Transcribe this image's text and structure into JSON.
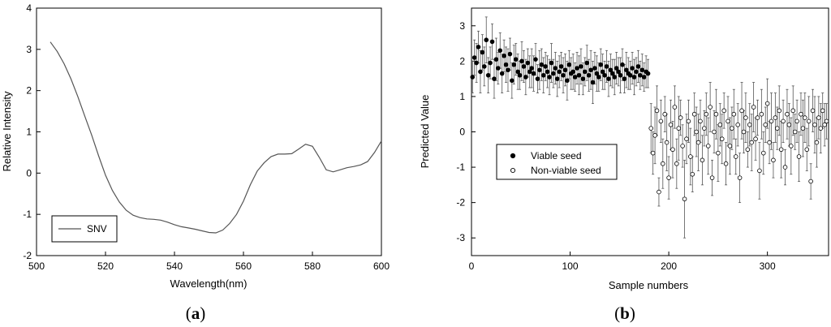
{
  "chart_data": [
    {
      "type": "line",
      "panel_label": "a",
      "xlabel": "Wavelength(nm)",
      "ylabel": "Relative Intensity",
      "xlim": [
        500,
        600
      ],
      "ylim": [
        -2,
        4
      ],
      "xticks": [
        "500",
        "520",
        "540",
        "560",
        "580",
        "600"
      ],
      "yticks": [
        "-2",
        "-1",
        "0",
        "1",
        "2",
        "3",
        "4"
      ],
      "legend": {
        "placement": "bottom-left",
        "entries": [
          "SNV"
        ]
      },
      "series": [
        {
          "name": "SNV",
          "color": "#555555",
          "x": [
            504,
            506,
            508,
            510,
            512,
            514,
            516,
            518,
            520,
            522,
            524,
            526,
            528,
            530,
            532,
            534,
            536,
            538,
            540,
            542,
            544,
            546,
            548,
            550,
            552,
            554,
            556,
            558,
            560,
            562,
            564,
            566,
            568,
            570,
            572,
            574,
            576,
            578,
            580,
            582,
            584,
            586,
            588,
            590,
            592,
            594,
            596,
            598,
            600
          ],
          "y": [
            3.18,
            2.95,
            2.65,
            2.28,
            1.85,
            1.38,
            0.92,
            0.42,
            -0.05,
            -0.42,
            -0.7,
            -0.9,
            -1.02,
            -1.08,
            -1.11,
            -1.12,
            -1.14,
            -1.19,
            -1.25,
            -1.3,
            -1.33,
            -1.36,
            -1.4,
            -1.44,
            -1.45,
            -1.38,
            -1.22,
            -1.0,
            -0.68,
            -0.28,
            0.05,
            0.25,
            0.4,
            0.46,
            0.46,
            0.47,
            0.58,
            0.7,
            0.65,
            0.38,
            0.08,
            0.03,
            0.08,
            0.13,
            0.16,
            0.2,
            0.28,
            0.5,
            0.78
          ]
        }
      ]
    },
    {
      "type": "scatter",
      "panel_label": "b",
      "xlabel": "Sample numbers",
      "ylabel": "Predicted Value",
      "xlim": [
        0,
        362
      ],
      "ylim": [
        -3.5,
        3.5
      ],
      "xticks": [
        "0",
        "100",
        "200",
        "300"
      ],
      "yticks": [
        "-3",
        "-2",
        "-1",
        "0",
        "1",
        "2",
        "3"
      ],
      "legend": {
        "placement": "middle-left",
        "entries": [
          "Viable seed",
          "Non-viable seed"
        ]
      },
      "error_bars": true,
      "series": [
        {
          "name": "Viable seed",
          "marker": "filled-circle",
          "x": [
            1,
            3,
            5,
            7,
            9,
            11,
            13,
            15,
            17,
            19,
            21,
            23,
            25,
            27,
            29,
            31,
            33,
            35,
            37,
            39,
            41,
            43,
            45,
            47,
            49,
            51,
            53,
            55,
            57,
            59,
            61,
            63,
            65,
            67,
            69,
            71,
            73,
            75,
            77,
            79,
            81,
            83,
            85,
            87,
            89,
            91,
            93,
            95,
            97,
            99,
            101,
            103,
            105,
            107,
            109,
            111,
            113,
            115,
            117,
            119,
            121,
            123,
            125,
            127,
            129,
            131,
            133,
            135,
            137,
            139,
            141,
            143,
            145,
            147,
            149,
            151,
            153,
            155,
            157,
            159,
            161,
            163,
            165,
            167,
            169,
            171,
            173,
            175,
            177,
            179
          ],
          "y": [
            1.55,
            2.1,
            1.95,
            2.4,
            1.7,
            2.25,
            1.85,
            2.6,
            1.6,
            1.95,
            2.55,
            1.5,
            2.05,
            1.8,
            2.3,
            1.65,
            2.15,
            1.9,
            1.75,
            2.2,
            1.45,
            1.9,
            2.05,
            1.7,
            1.6,
            2.0,
            1.85,
            1.55,
            1.95,
            1.7,
            1.8,
            1.65,
            2.05,
            1.5,
            1.75,
            1.9,
            1.6,
            1.85,
            1.7,
            1.55,
            1.95,
            1.65,
            1.8,
            1.5,
            1.7,
            1.85,
            1.6,
            1.75,
            1.45,
            1.9,
            1.65,
            1.7,
            1.55,
            1.8,
            1.6,
            1.85,
            1.5,
            1.7,
            1.95,
            1.6,
            1.75,
            1.4,
            1.8,
            1.65,
            1.55,
            1.9,
            1.7,
            1.6,
            1.85,
            1.5,
            1.75,
            1.65,
            1.55,
            1.8,
            1.7,
            1.6,
            1.9,
            1.5,
            1.75,
            1.65,
            1.6,
            1.8,
            1.55,
            1.7,
            1.85,
            1.6,
            1.75,
            1.55,
            1.7,
            1.65
          ],
          "err": [
            0.45,
            0.5,
            0.55,
            0.45,
            0.6,
            0.5,
            0.55,
            0.65,
            0.5,
            0.45,
            0.5,
            0.55,
            0.6,
            0.45,
            0.5,
            0.55,
            0.45,
            0.5,
            0.6,
            0.45,
            0.5,
            0.55,
            0.45,
            0.5,
            0.4,
            0.55,
            0.45,
            0.5,
            0.4,
            0.45,
            0.55,
            0.5,
            0.45,
            0.4,
            0.55,
            0.45,
            0.5,
            0.4,
            0.45,
            0.5,
            0.55,
            0.4,
            0.45,
            0.5,
            0.45,
            0.4,
            0.5,
            0.45,
            0.55,
            0.4,
            0.45,
            0.5,
            0.4,
            0.45,
            0.55,
            0.5,
            0.45,
            0.4,
            0.5,
            0.45,
            0.55,
            0.6,
            0.45,
            0.5,
            0.4,
            0.45,
            0.5,
            0.4,
            0.45,
            0.5,
            0.45,
            0.4,
            0.5,
            0.45,
            0.4,
            0.5,
            0.45,
            0.4,
            0.5,
            0.45,
            0.4,
            0.45,
            0.5,
            0.4,
            0.45,
            0.4,
            0.45,
            0.4,
            0.45,
            0.4
          ]
        },
        {
          "name": "Non-viable seed",
          "marker": "open-circle",
          "x": [
            182,
            184,
            186,
            188,
            190,
            192,
            194,
            196,
            198,
            200,
            202,
            204,
            206,
            208,
            210,
            212,
            214,
            216,
            218,
            220,
            222,
            224,
            226,
            228,
            230,
            232,
            234,
            236,
            238,
            240,
            242,
            244,
            246,
            248,
            250,
            252,
            254,
            256,
            258,
            260,
            262,
            264,
            266,
            268,
            270,
            272,
            274,
            276,
            278,
            280,
            282,
            284,
            286,
            288,
            290,
            292,
            294,
            296,
            298,
            300,
            302,
            304,
            306,
            308,
            310,
            312,
            314,
            316,
            318,
            320,
            322,
            324,
            326,
            328,
            330,
            332,
            334,
            336,
            338,
            340,
            342,
            344,
            346,
            348,
            350,
            352,
            354,
            356,
            358,
            360
          ],
          "y": [
            0.1,
            -0.6,
            -0.1,
            0.6,
            -1.7,
            0.3,
            -0.9,
            0.5,
            -0.3,
            -1.3,
            0.2,
            -0.5,
            0.7,
            -0.9,
            0.1,
            0.4,
            -0.4,
            -1.9,
            -0.2,
            0.3,
            -0.7,
            -1.2,
            0.5,
            0.0,
            -0.3,
            0.3,
            -0.8,
            0.1,
            0.5,
            -0.4,
            0.7,
            -1.3,
            0.0,
            0.5,
            -0.6,
            0.2,
            -0.2,
            0.6,
            -0.9,
            0.3,
            -0.4,
            0.1,
            0.5,
            -0.7,
            0.2,
            -1.3,
            0.6,
            0.0,
            0.4,
            -0.5,
            0.2,
            -0.3,
            0.7,
            -0.2,
            0.4,
            -1.1,
            0.5,
            -0.6,
            0.2,
            0.8,
            -0.3,
            0.3,
            -0.8,
            0.4,
            0.1,
            0.6,
            -0.5,
            0.3,
            -1.0,
            0.5,
            0.2,
            -0.4,
            0.6,
            0.0,
            0.3,
            -0.7,
            0.5,
            0.1,
            0.4,
            -0.5,
            0.3,
            -1.4,
            0.6,
            0.2,
            -0.3,
            0.4,
            0.1,
            0.6,
            0.2,
            0.3
          ],
          "err": [
            0.7,
            0.6,
            0.8,
            0.7,
            0.4,
            0.6,
            0.7,
            0.5,
            0.8,
            0.6,
            0.7,
            0.8,
            0.6,
            0.7,
            0.9,
            0.5,
            0.6,
            1.1,
            0.7,
            0.6,
            0.8,
            0.5,
            0.6,
            0.7,
            0.8,
            0.6,
            0.7,
            0.5,
            0.6,
            0.8,
            0.7,
            0.5,
            0.6,
            0.7,
            0.8,
            0.6,
            0.7,
            0.5,
            0.6,
            0.7,
            0.8,
            0.6,
            0.7,
            0.5,
            0.6,
            0.7,
            0.8,
            0.6,
            0.7,
            0.5,
            0.6,
            0.8,
            0.7,
            0.6,
            0.5,
            0.8,
            0.7,
            0.6,
            0.5,
            0.7,
            0.6,
            0.8,
            0.5,
            0.7,
            0.6,
            0.7,
            0.8,
            0.6,
            0.5,
            0.7,
            0.6,
            0.8,
            0.7,
            0.5,
            0.6,
            0.7,
            0.6,
            0.8,
            0.7,
            0.6,
            0.7,
            0.5,
            0.6,
            0.8,
            0.7,
            0.6,
            0.7,
            0.5,
            0.6,
            0.5
          ]
        }
      ]
    }
  ]
}
